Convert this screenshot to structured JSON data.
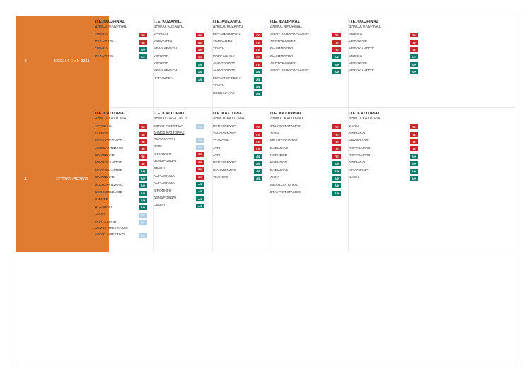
{
  "colors": {
    "orange": "#e07b32",
    "pe": "#c8262c",
    "af": "#127a6b",
    "ea": "#b2cfe4"
  },
  "rows": [
    {
      "num": "3",
      "code": "EC0264  EMN 3311",
      "cols": [
        {
          "h1": "Π.Ε. ΦΛΩΡΙΝΑΣ",
          "h2": "ΔΗΜΟΣ ΦΛΩΡΙΝΑΣ",
          "items": [
            {
              "name": "ΣΙΤΑΡΙΑ",
              "badge": "ΠΕ",
              "type": "pe"
            },
            {
              "name": "ΠΑΛΑΙΣΤΡΑ",
              "badge": "ΠΕ",
              "type": "pe"
            },
            {
              "name": "ΣΙΤΑΡΙΑ",
              "badge": "ΑΦ",
              "type": "af"
            },
            {
              "name": "ΠΑΛΑΙΣΤΡΑ",
              "badge": "ΑΦ",
              "type": "af"
            }
          ]
        },
        {
          "h1": "Π.Ε. ΚΟΖΑΝΗΣ",
          "h2": "ΔΗΜΟΣ ΚΟΖΑΝΗΣ",
          "items": [
            {
              "name": "ΚΟΖΑΝΗ",
              "badge": "ΠΕ",
              "type": "pe"
            },
            {
              "name": "ΚΑΡΥΔΙΤΣΑ",
              "badge": "ΠΕ",
              "type": "pe"
            },
            {
              "name": "ΝΕΑ ΧΑΡΑΥΓΗ",
              "badge": "ΠΕ",
              "type": "pe"
            },
            {
              "name": "ΚΡΟΚΟΣ",
              "badge": "ΠΕ",
              "type": "pe"
            },
            {
              "name": "ΚΡΟΚΟΣ",
              "badge": "ΑΦ",
              "type": "af"
            },
            {
              "name": "ΝΕΑ ΧΑΡΑΥΓΗ",
              "badge": "ΑΦ",
              "type": "af"
            },
            {
              "name": "ΚΑΡΥΔΙΤΣΑ",
              "badge": "ΑΦ",
              "type": "af"
            }
          ]
        },
        {
          "h1": "Π.Ε. ΚΟΖΑΝΗΣ",
          "h2": "ΔΗΜΟΣ ΚΟΖΑΝΗΣ",
          "items": [
            {
              "name": "ΜΕΤΑΜΟΡΦΩΣΗ",
              "badge": "ΠΕ",
              "type": "pe"
            },
            {
              "name": "ΞΗΡΟΛΙΜΝΗ",
              "badge": "ΠΕ",
              "type": "pe"
            },
            {
              "name": "ΣΚΗΤΗ",
              "badge": "ΠΕ",
              "type": "pe"
            },
            {
              "name": "ΚΟΚΚΙΝΑΡΑΣ",
              "badge": "ΠΕ",
              "type": "pe"
            },
            {
              "name": "ΑΝΘΟΤΟΠΟΣ",
              "badge": "ΠΕ",
              "type": "pe"
            },
            {
              "name": "ΑΝΘΟΤΟΠΟΣ",
              "badge": "ΑΦ",
              "type": "af"
            },
            {
              "name": "ΜΕΤΑΜΟΡΦΩΣΗ",
              "badge": "ΑΦ",
              "type": "af"
            },
            {
              "name": "ΣΚΗΤΗ",
              "badge": "ΑΦ",
              "type": "af"
            },
            {
              "name": "ΚΟΚΚΙΝΑΡΑΣ",
              "badge": "ΑΦ",
              "type": "af"
            }
          ]
        },
        {
          "h1": "Π.Ε. ΦΛΩΡΙΝΑΣ",
          "h2": "ΔΗΜΟΣ ΦΛΩΡΙΝΑΣ",
          "items": [
            {
              "name": "ΑΓΙΟΣ ΒΑΡΘΟΛΟΜΑΙΟΣ",
              "badge": "ΠΕ",
              "type": "pe"
            },
            {
              "name": "ΛΕΠΤΟΚΑΡΥΕΣ",
              "badge": "ΠΕ",
              "type": "pe"
            },
            {
              "name": "ΦΛΑΜΠΟΥΡΟ",
              "badge": "ΠΕ",
              "type": "pe"
            },
            {
              "name": "ΦΛΑΜΠΟΥΡΟ",
              "badge": "ΑΦ",
              "type": "af"
            },
            {
              "name": "ΛΕΠΤΟΚΑΡΥΕΣ",
              "badge": "ΑΦ",
              "type": "af"
            },
            {
              "name": "ΑΓΙΟΣ ΒΑΡΘΟΛΟΜΑΙΟΣ",
              "badge": "ΑΦ",
              "type": "af"
            }
          ]
        },
        {
          "h1": "Π.Ε. ΦΛΩΡΙΝΑΣ",
          "h2": "ΔΗΜΟΣ ΦΛΩΡΙΝΑΣ",
          "items": [
            {
              "name": "ΜΑΡΙΝΑ",
              "badge": "ΠΕ",
              "type": "pe"
            },
            {
              "name": "ΜΕΣΟΧΩΡΙ",
              "badge": "ΠΕ",
              "type": "pe"
            },
            {
              "name": "ΜΕΣΟΚΑΜΠΟΣ",
              "badge": "ΠΕ",
              "type": "pe"
            },
            {
              "name": "ΜΑΡΙΝΑ",
              "badge": "ΑΦ",
              "type": "af"
            },
            {
              "name": "ΜΕΣΟΧΩΡΙ",
              "badge": "ΑΦ",
              "type": "af"
            },
            {
              "name": "ΜΕΣΟΚΑΜΠΟΣ",
              "badge": "ΑΦ",
              "type": "af"
            }
          ]
        }
      ]
    },
    {
      "num": "4",
      "code": "EC0265  /BE7609",
      "cols": [
        {
          "h1": "Π.Ε. ΚΑΣΤΟΡΙΑΣ",
          "h2": "ΔΗΜΟΣ ΚΑΣΤΟΡΙΑΣ",
          "items": [
            {
              "name": "ΔΥΣΠΗΛΙΑ",
              "badge": "ΠΕ",
              "type": "pe"
            },
            {
              "name": "ΓΑΒΡΟΣ",
              "badge": "ΠΕ",
              "type": "pe"
            },
            {
              "name": "ΝΕΟΣ ΟΙΚΙΣΜΟΣ",
              "badge": "ΠΕ",
              "type": "pe"
            },
            {
              "name": "ΑΓΙΟΣ ΑΝΤΩΝΙΟΣ",
              "badge": "ΠΕ",
              "type": "pe"
            },
            {
              "name": "ΚΡΑΝΙΩΝΑΣ",
              "badge": "ΠΕ",
              "type": "pe"
            },
            {
              "name": "ΜΑΥΡΟΚΑΜΠΟΣ",
              "badge": "ΠΕ",
              "type": "pe"
            },
            {
              "name": "ΜΑΥΡΟΚΑΜΠΟΣ",
              "badge": "ΑΦ",
              "type": "af"
            },
            {
              "name": "ΚΡΑΝΙΩΝΑΣ",
              "badge": "ΑΦ",
              "type": "af"
            },
            {
              "name": "ΑΓΙΟΣ ΑΝΤΩΝΙΟΣ",
              "badge": "ΑΦ",
              "type": "af"
            },
            {
              "name": "ΝΕΟΣ ΟΙΚΙΣΜΟΣ",
              "badge": "ΑΦ",
              "type": "af"
            },
            {
              "name": "ΓΑΒΡΟΣ",
              "badge": "ΑΦ",
              "type": "af"
            },
            {
              "name": "ΔΥΣΠΗΛΙΑ",
              "badge": "ΑΦ",
              "type": "af"
            },
            {
              "name": "ΧΛΟΗ",
              "badge": "ΕΑ",
              "type": "ea"
            },
            {
              "name": "ΠΟΛΥΚΑΡΠΗ",
              "badge": "ΕΑ",
              "type": "ea"
            },
            {
              "name": "ΔΗΜΟΣ ΟΡΕΣΤΙΑΔΟΣ",
              "badge": "",
              "type": "hd"
            },
            {
              "name": "ΑΡΓΟΣ ΟΡΕΣΤΙΚΟ",
              "badge": "ΕΑ",
              "type": "ea"
            }
          ]
        },
        {
          "h1": "Π.Ε. ΚΑΣΤΟΡΙΑΣ",
          "h2": "ΔΗΜΟΣ ΟΡΕΣΤΙΔΟΣ",
          "items": [
            {
              "name": "ΑΡΓΟΣ ΟΡΕΣΤΙΚΟ",
              "badge": "ΕΑ",
              "type": "ea"
            },
            {
              "name": "ΔΗΜΟΣ ΚΑΣΤΟΡΙΑΣ",
              "badge": "",
              "type": "hd"
            },
            {
              "name": "ΠΟΛΥΚΑΡΠΗ",
              "badge": "ΕΑ",
              "type": "ea"
            },
            {
              "name": "ΧΛΟΗ",
              "badge": "ΕΑ",
              "type": "ea"
            },
            {
              "name": "ΙΕΡΟΠΗΓΗ",
              "badge": "ΠΕ",
              "type": "pe"
            },
            {
              "name": "ΔΕΝΔΡΟΧΩΡΙ",
              "badge": "ΠΕ",
              "type": "pe"
            },
            {
              "name": "ΟΙΝΟΗ",
              "badge": "ΠΕ",
              "type": "pe"
            },
            {
              "name": "ΚΟΡΟΜΗΛΙΑ",
              "badge": "ΠΕ",
              "type": "pe"
            },
            {
              "name": "ΚΟΡΟΜΗΛΙΑ",
              "badge": "ΑΦ",
              "type": "af"
            },
            {
              "name": "ΙΕΡΟΠΗΓΗ",
              "badge": "ΑΦ",
              "type": "af"
            },
            {
              "name": "ΔΕΝΔΡΟΧΩΡΙ",
              "badge": "ΑΦ",
              "type": "af"
            },
            {
              "name": "ΟΙΝΟΗ",
              "badge": "ΑΦ",
              "type": "af"
            }
          ]
        },
        {
          "h1": "Π.Ε. ΚΑΣΤΟΡΙΑΣ",
          "h2": "ΔΗΜΟΣ ΚΑΣΤΟΡΙΑΣ",
          "items": [
            {
              "name": "ΠΕΝΤΑΒΡΥΣΟ",
              "badge": "ΠΕ",
              "type": "pe"
            },
            {
              "name": "ΧΙΛΙΟΔΕΝΔΡΟ",
              "badge": "ΠΕ",
              "type": "pe"
            },
            {
              "name": "ΤΣΑΚΟΝΗ",
              "badge": "ΠΕ",
              "type": "pe"
            },
            {
              "name": "ΑΥΓΗ",
              "badge": "ΠΕ",
              "type": "pe"
            },
            {
              "name": "ΑΥΓΗ",
              "badge": "ΑΦ",
              "type": "af"
            },
            {
              "name": "ΠΕΝΤΑΒΡΥΣΟ",
              "badge": "ΑΦ",
              "type": "af"
            },
            {
              "name": "ΧΙΛΙΟΔΕΝΔΡΟ",
              "badge": "ΑΦ",
              "type": "af"
            },
            {
              "name": "ΤΣΑΚΟΝΗ",
              "badge": "ΑΦ",
              "type": "af"
            }
          ]
        },
        {
          "h1": "Π.Ε. ΚΑΣΤΟΡΙΑΣ",
          "h2": "ΔΗΜΟΣ ΚΑΣΤΟΡΙΑΣ",
          "items": [
            {
              "name": "ΣΤΑΥΡΟΠΟΤΑΜΟΣ",
              "badge": "ΠΕ",
              "type": "pe"
            },
            {
              "name": "ΛΙΘΙΑ",
              "badge": "ΠΕ",
              "type": "pe"
            },
            {
              "name": "ΜΕΛΙΣΣΟΤΟΠΟΣ",
              "badge": "ΠΕ",
              "type": "pe"
            },
            {
              "name": "ΒΑΣΙΛΕΙΑΣ",
              "badge": "ΠΕ",
              "type": "pe"
            },
            {
              "name": "ΚΟΡΗΣΟΣ",
              "badge": "ΠΕ",
              "type": "pe"
            },
            {
              "name": "ΚΟΡΗΣΟΣ",
              "badge": "ΑΦ",
              "type": "af"
            },
            {
              "name": "ΒΑΣΙΛΕΙΑΣ",
              "badge": "ΑΦ",
              "type": "af"
            },
            {
              "name": "ΛΙΘΙΑ",
              "badge": "ΑΦ",
              "type": "af"
            },
            {
              "name": "ΜΕΛΙΣΣΟΤΟΠΟΣ",
              "badge": "ΑΦ",
              "type": "af"
            },
            {
              "name": "ΣΤΑΥΡΟΠΟΤΑΜΟΣ",
              "badge": "ΑΦ",
              "type": "af"
            }
          ]
        },
        {
          "h1": "Π.Ε. ΚΑΣΤΟΡΙΑΣ",
          "h2": "ΔΗΜΟΣ ΚΑΣΤΟΡΙΑΣ",
          "items": [
            {
              "name": "ΧΛΟΗ",
              "badge": "ΠΕ",
              "type": "pe"
            },
            {
              "name": "ΔΙΣΠΗΛΙΟ",
              "badge": "ΠΕ",
              "type": "pe"
            },
            {
              "name": "ΜΑΥΡΟΧΩΡΙ",
              "badge": "ΠΕ",
              "type": "pe"
            },
            {
              "name": "ΠΟΛΥΚΑΡΠΗ",
              "badge": "ΠΕ",
              "type": "pe"
            },
            {
              "name": "ΠΟΛΥΚΑΡΠΗ",
              "badge": "ΑΦ",
              "type": "af"
            },
            {
              "name": "ΔΙΣΠΗΛΙΟ",
              "badge": "ΑΦ",
              "type": "af"
            },
            {
              "name": "ΜΑΥΡΟΧΩΡΙ",
              "badge": "ΑΦ",
              "type": "af"
            },
            {
              "name": "ΧΛΟΗ",
              "badge": "ΑΦ",
              "type": "af"
            }
          ]
        }
      ]
    }
  ]
}
